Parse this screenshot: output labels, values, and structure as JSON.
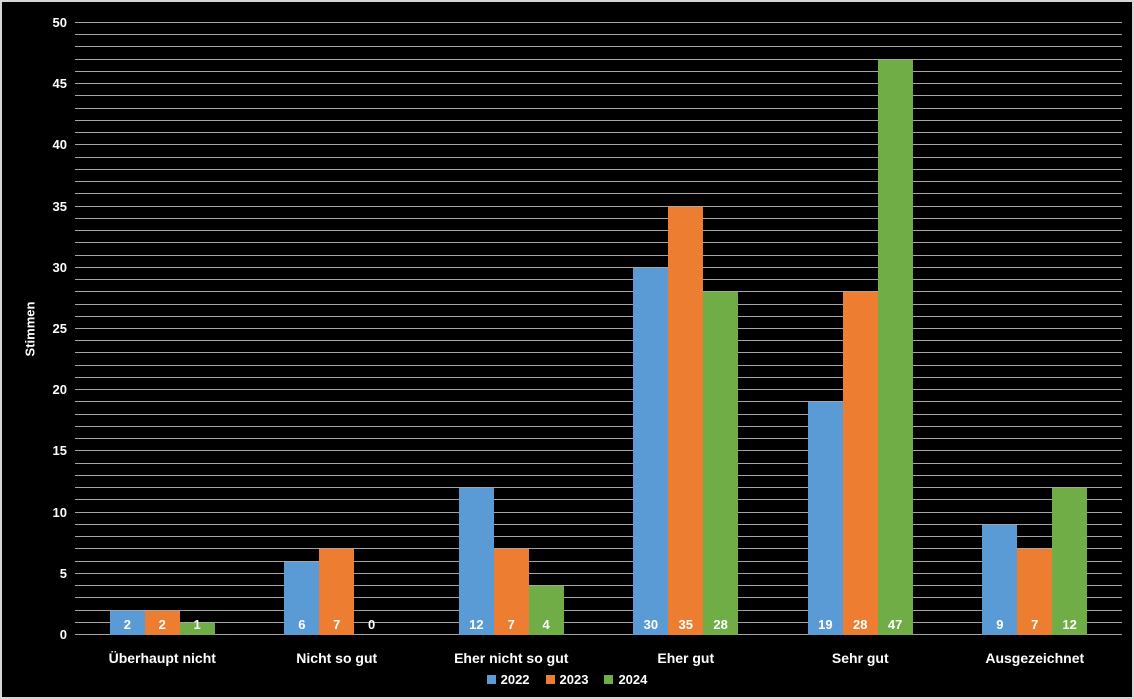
{
  "chart": {
    "background": "#000000",
    "border_color": "#d6d6d6"
  },
  "chart_data": {
    "type": "bar",
    "title": "",
    "xlabel": "",
    "ylabel": "Stimmen",
    "categories": [
      "Überhaupt nicht",
      "Nicht so gut",
      "Eher nicht so gut",
      "Eher gut",
      "Sehr gut",
      "Ausgezeichnet"
    ],
    "series": [
      {
        "name": "2022",
        "color": "#5B9BD5",
        "values": [
          2,
          6,
          12,
          30,
          19,
          9
        ]
      },
      {
        "name": "2023",
        "color": "#ED7D31",
        "values": [
          2,
          7,
          7,
          35,
          28,
          7
        ]
      },
      {
        "name": "2024",
        "color": "#70AD47",
        "values": [
          1,
          0,
          4,
          28,
          47,
          12
        ]
      }
    ],
    "ylim": [
      0,
      50
    ],
    "y_tick_step": 5,
    "y_minor_step": 1,
    "grid": "on",
    "grid_color": "#a6a6a6",
    "text_color": "#ffffff",
    "legend_position": "bottom",
    "data_labels": "inside-base"
  }
}
